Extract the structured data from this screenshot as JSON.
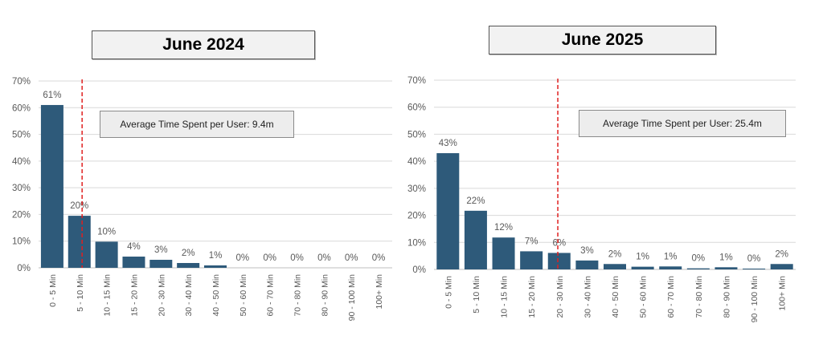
{
  "chart_data": [
    {
      "type": "bar",
      "title": "June 2024",
      "categories": [
        "0 - 5 Min",
        "5 - 10 Min",
        "10 - 15 Min",
        "15 - 20 Min",
        "20 - 30 Min",
        "30 - 40 Min",
        "40 - 50 Min",
        "50 - 60 Min",
        "60 - 70 Min",
        "70 - 80 Min",
        "80 - 90 Min",
        "90 - 100 Min",
        "100+ Min"
      ],
      "values": [
        61,
        20,
        10,
        4,
        3,
        2,
        1,
        0,
        0,
        0,
        0,
        0,
        0
      ],
      "data_labels": [
        "61%",
        "20%",
        "10%",
        "4%",
        "3%",
        "2%",
        "1%",
        "0%",
        "0%",
        "0%",
        "0%",
        "0%",
        "0%"
      ],
      "plotted_values": [
        61,
        19.5,
        9.8,
        4.2,
        3,
        1.8,
        0.9,
        0,
        0,
        0,
        0,
        0,
        0
      ],
      "y_ticks": [
        "0%",
        "10%",
        "20%",
        "30%",
        "40%",
        "50%",
        "60%",
        "70%"
      ],
      "ylim": [
        0,
        70
      ],
      "grid": true,
      "bar_color": "#2e5a7a",
      "reference_line": {
        "value_minutes": 9.4,
        "position_category_index": 1.6,
        "color": "#e02020",
        "style": "dashed"
      },
      "annotation": "Average Time Spent per User: 9.4m"
    },
    {
      "type": "bar",
      "title": "June 2025",
      "categories": [
        "0 - 5 Min",
        "5 - 10 Min",
        "10 - 15 Min",
        "15 - 20 Min",
        "20 - 30 Min",
        "30 - 40 Min",
        "40 - 50 Min",
        "50 - 60 Min",
        "60 - 70 Min",
        "70 - 80 Min",
        "80 - 90 Min",
        "90 - 100 Min",
        "100+ Min"
      ],
      "values": [
        43,
        22,
        12,
        7,
        6,
        3,
        2,
        1,
        1,
        0,
        1,
        0,
        2
      ],
      "data_labels": [
        "43%",
        "22%",
        "12%",
        "7%",
        "6%",
        "3%",
        "2%",
        "1%",
        "1%",
        "0%",
        "1%",
        "0%",
        "2%"
      ],
      "plotted_values": [
        43,
        21.7,
        11.8,
        6.7,
        6.1,
        3.3,
        2,
        1,
        1.1,
        0.4,
        0.8,
        0.3,
        2
      ],
      "y_ticks": [
        "0%",
        "10%",
        "20%",
        "30%",
        "40%",
        "50%",
        "60%",
        "70%"
      ],
      "ylim": [
        0,
        70
      ],
      "grid": true,
      "bar_color": "#2e5a7a",
      "reference_line": {
        "value_minutes": 25.4,
        "position_category_index": 4.45,
        "color": "#e02020",
        "style": "dashed"
      },
      "annotation": "Average Time Spent per User: 25.4m"
    }
  ]
}
